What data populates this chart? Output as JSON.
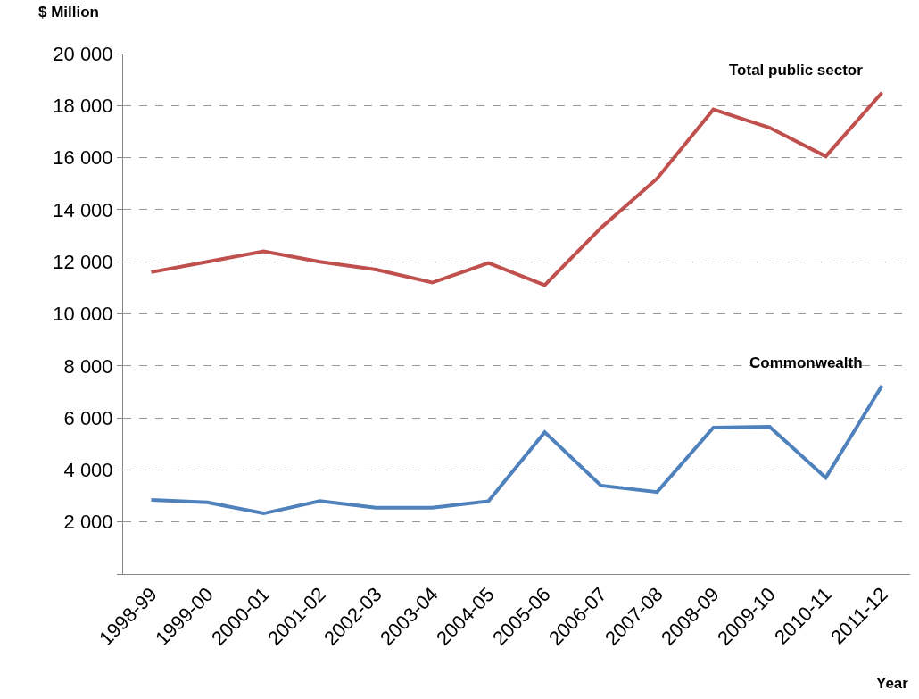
{
  "chart_data": {
    "type": "line",
    "ylabel": "$ Million",
    "xlabel": "Year",
    "categories": [
      "1998-99",
      "1999-00",
      "2000-01",
      "2001-02",
      "2002-03",
      "2003-04",
      "2004-05",
      "2005-06",
      "2006-07",
      "2007-08",
      "2008-09",
      "2009-10",
      "2010-11",
      "2011-12"
    ],
    "series": [
      {
        "name": "Total public sector",
        "color": "#c0504d",
        "values": [
          11600,
          12000,
          12400,
          12000,
          11700,
          11200,
          11950,
          11100,
          13300,
          15200,
          17850,
          17150,
          16050,
          18500
        ]
      },
      {
        "name": "Commonwealth",
        "color": "#4f81bd",
        "values": [
          2850,
          2750,
          2330,
          2800,
          2550,
          2550,
          2800,
          5450,
          3400,
          3150,
          5630,
          5660,
          3700,
          7240
        ]
      }
    ],
    "ylim": [
      0,
      20000
    ],
    "yticks": [
      {
        "value": 0,
        "label": null
      },
      {
        "value": 2000,
        "label": "2 000"
      },
      {
        "value": 4000,
        "label": "4 000"
      },
      {
        "value": 6000,
        "label": "6 000"
      },
      {
        "value": 8000,
        "label": "8 000"
      },
      {
        "value": 10000,
        "label": "10 000"
      },
      {
        "value": 12000,
        "label": "12 000"
      },
      {
        "value": 14000,
        "label": "14 000"
      },
      {
        "value": 16000,
        "label": "16 000"
      },
      {
        "value": 18000,
        "label": "18 000"
      },
      {
        "value": 20000,
        "label": "20 000"
      }
    ],
    "grid": "y",
    "legend": false,
    "marker": "none",
    "line_style": "solid"
  }
}
